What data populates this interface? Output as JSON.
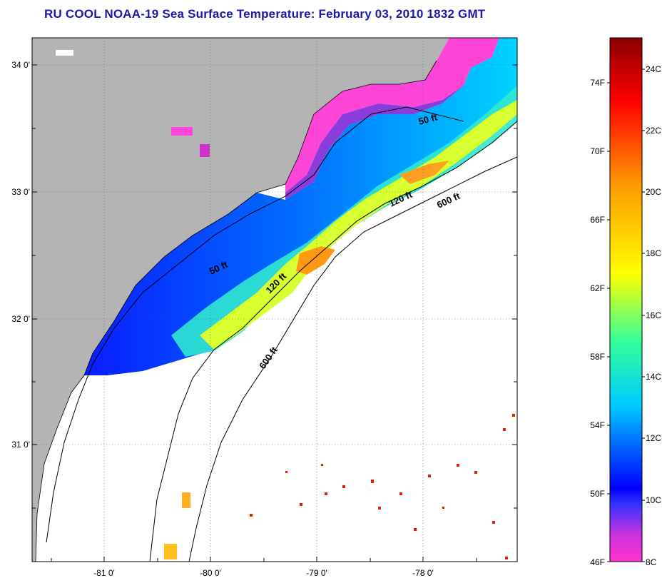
{
  "title": "RU COOL  NOAA-19  Sea Surface Temperature:  February 03, 2010 1832 GMT",
  "map": {
    "lat_labels": [
      "34 0'",
      "33 0'",
      "32 0'",
      "31 0'"
    ],
    "lon_labels": [
      "-81 0'",
      "-80 0'",
      "-79 0'",
      "-78 0'"
    ],
    "contour_labels": [
      "50 ft",
      "120 ft",
      "600 ft",
      "50 ft",
      "120 ft",
      "600 ft"
    ]
  },
  "colorbar": {
    "f_labels": [
      "74F",
      "70F",
      "66F",
      "62F",
      "58F",
      "54F",
      "50F",
      "46F"
    ],
    "c_labels": [
      "24C",
      "22C",
      "20C",
      "18C",
      "16C",
      "14C",
      "12C",
      "10C",
      "8C"
    ],
    "colors": [
      "#ff33cc",
      "#9933cc",
      "#0000ff",
      "#00ccff",
      "#33ff99",
      "#ffff00",
      "#ff9900",
      "#ff0000",
      "#880000"
    ]
  }
}
